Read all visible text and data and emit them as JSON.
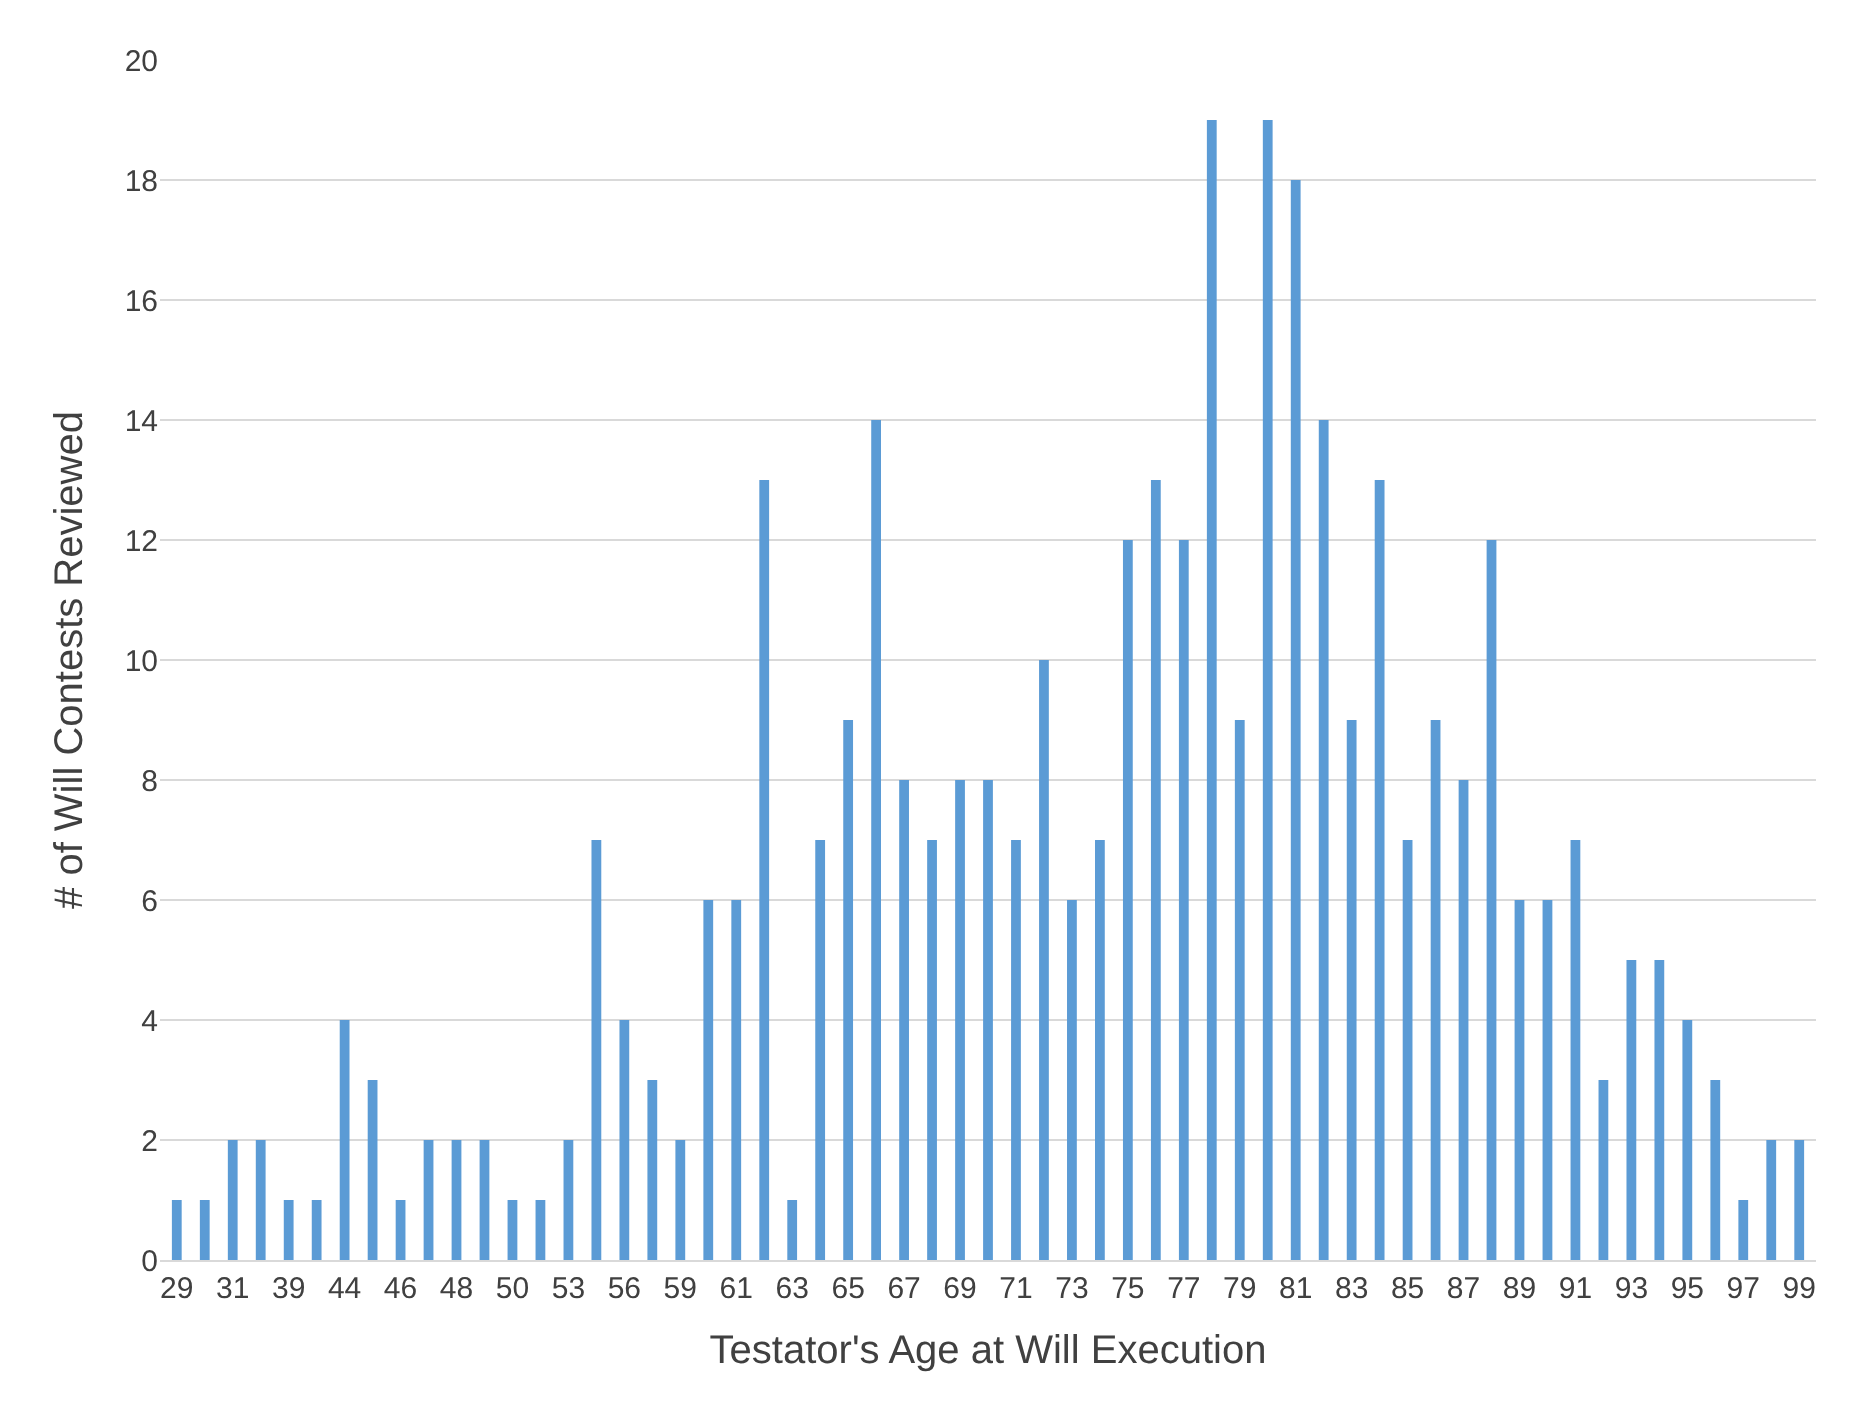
{
  "chart_data": {
    "type": "bar",
    "xlabel": "Testator's Age at Will Execution",
    "ylabel": "# of Will Contests Reviewed",
    "categories": [
      "29",
      null,
      "31",
      null,
      "39",
      null,
      "44",
      null,
      "46",
      null,
      "48",
      null,
      "50",
      null,
      "53",
      null,
      "56",
      null,
      "59",
      null,
      "61",
      null,
      "63",
      null,
      "65",
      null,
      "67",
      null,
      "69",
      null,
      "71",
      null,
      "73",
      null,
      "75",
      null,
      "77",
      null,
      "79",
      null,
      "81",
      null,
      "83",
      null,
      "85",
      null,
      "87",
      null,
      "89",
      null,
      "91",
      null,
      "93",
      null,
      "95",
      null,
      "97",
      null,
      "99"
    ],
    "values": [
      1,
      1,
      2,
      2,
      1,
      1,
      4,
      3,
      1,
      2,
      2,
      2,
      1,
      1,
      2,
      7,
      4,
      3,
      2,
      6,
      6,
      13,
      1,
      7,
      9,
      14,
      8,
      7,
      8,
      8,
      7,
      10,
      6,
      7,
      12,
      13,
      12,
      19,
      9,
      19,
      18,
      14,
      9,
      13,
      7,
      9,
      8,
      12,
      6,
      6,
      7,
      3,
      5,
      5,
      4,
      3,
      1,
      2,
      2
    ],
    "color": "#5b9bd5",
    "ylim": [
      0,
      20
    ],
    "yticks": [
      0,
      2,
      4,
      6,
      8,
      10,
      12,
      14,
      16,
      18,
      20
    ],
    "grid": "y",
    "legend": false
  }
}
